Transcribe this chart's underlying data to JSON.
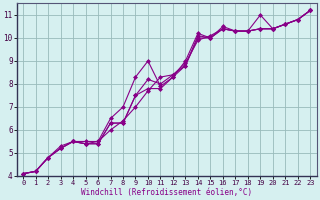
{
  "xlabel": "Windchill (Refroidissement éolien,°C)",
  "bg_color": "#d6f0f0",
  "line_color": "#880088",
  "grid_color": "#99bbbb",
  "xlim": [
    -0.5,
    23.5
  ],
  "ylim": [
    4,
    11.5
  ],
  "xticks": [
    0,
    1,
    2,
    3,
    4,
    5,
    6,
    7,
    8,
    9,
    10,
    11,
    12,
    13,
    14,
    15,
    16,
    17,
    18,
    19,
    20,
    21,
    22,
    23
  ],
  "yticks": [
    4,
    5,
    6,
    7,
    8,
    9,
    10,
    11
  ],
  "series": [
    [
      4.1,
      4.2,
      4.8,
      5.2,
      5.5,
      5.5,
      5.5,
      6.0,
      6.4,
      7.0,
      7.7,
      8.3,
      8.4,
      8.8,
      10.1,
      10.0,
      10.4,
      10.3,
      10.3,
      11.0,
      10.4,
      10.6,
      10.8,
      11.2
    ],
    [
      4.1,
      4.2,
      4.8,
      5.3,
      5.5,
      5.4,
      5.5,
      6.5,
      7.0,
      8.3,
      9.0,
      7.9,
      8.3,
      9.0,
      10.2,
      10.0,
      10.4,
      10.3,
      10.3,
      10.4,
      10.4,
      10.6,
      10.8,
      11.2
    ],
    [
      4.1,
      4.2,
      4.8,
      5.2,
      5.5,
      5.4,
      5.4,
      6.3,
      6.3,
      7.5,
      8.2,
      8.0,
      8.4,
      8.9,
      9.9,
      10.1,
      10.4,
      10.3,
      10.3,
      10.4,
      10.4,
      10.6,
      10.8,
      11.2
    ],
    [
      4.1,
      4.2,
      4.8,
      5.2,
      5.5,
      5.4,
      5.4,
      6.3,
      6.3,
      7.5,
      7.8,
      7.8,
      8.3,
      8.8,
      10.0,
      10.0,
      10.5,
      10.3,
      10.3,
      10.4,
      10.4,
      10.6,
      10.8,
      11.2
    ]
  ]
}
